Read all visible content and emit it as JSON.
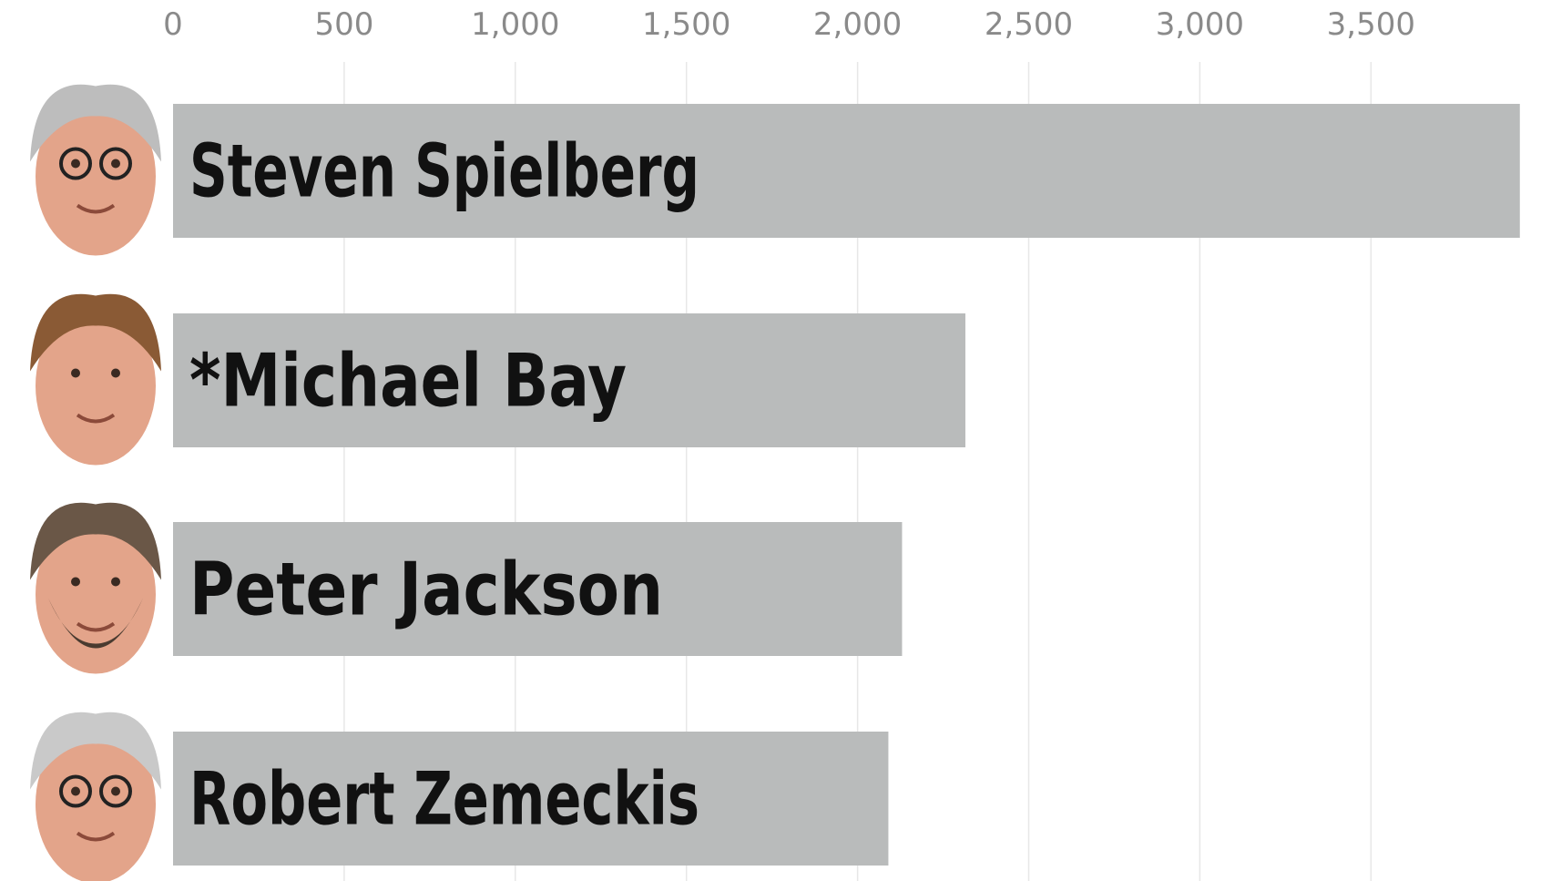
{
  "chart_data": {
    "type": "bar",
    "orientation": "horizontal",
    "title": "",
    "xlabel": "",
    "ylabel": "",
    "xlim": [
      0,
      3950
    ],
    "xticks": [
      0,
      500,
      1000,
      1500,
      2000,
      2500,
      3000,
      3500
    ],
    "xtick_labels": [
      "0",
      "500",
      "1,000",
      "1,500",
      "2,000",
      "2,500",
      "3,000",
      "3,500"
    ],
    "grid": true,
    "categories": [
      "Steven Spielberg",
      "*Michael Bay",
      "Peter Jackson",
      "Robert Zemeckis"
    ],
    "values": [
      3935,
      2315,
      2130,
      2090
    ],
    "icons": [
      "portrait-steven-spielberg",
      "portrait-michael-bay",
      "portrait-peter-jackson",
      "portrait-robert-zemeckis"
    ],
    "colors": {
      "bar": "#b9bbbb",
      "grid": "#e7e7e7",
      "tick": "#8a8a8a",
      "label": "#111111",
      "skin": "#e3a48a",
      "hair": [
        "#bdbdbd",
        "#8a5a35",
        "#6a5747",
        "#c9c9c9"
      ]
    }
  }
}
